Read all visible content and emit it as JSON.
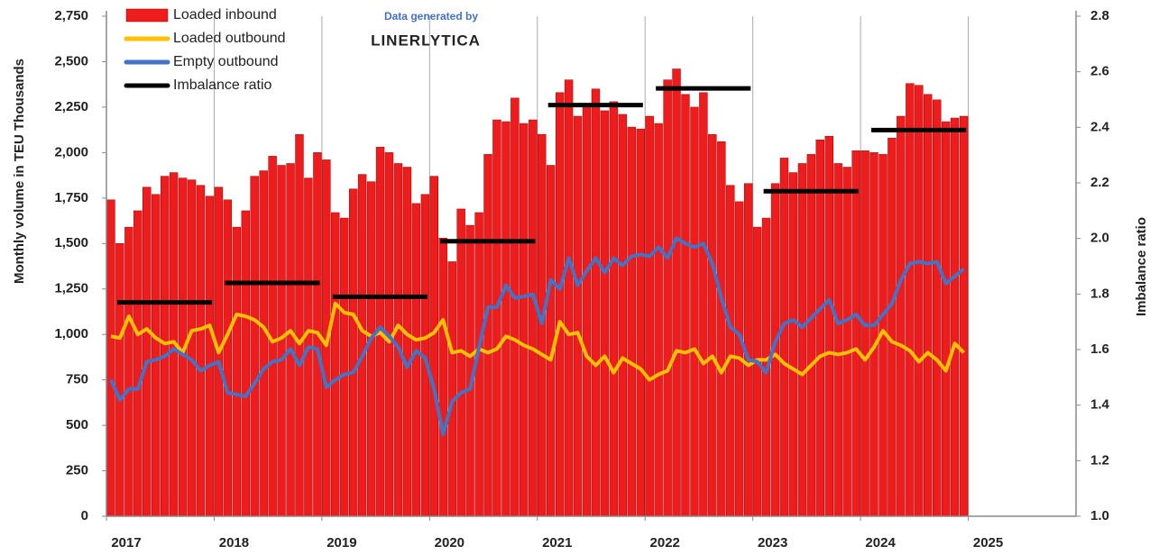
{
  "chart_data": {
    "type": "combo",
    "annotations": [
      "Data generated by",
      "LINERLYTICA"
    ],
    "ylabel": "Monthly volume in TEU Thousands",
    "y2label": "Imbalance ratio",
    "xlim": [
      2017,
      2026
    ],
    "xticks": [
      2017,
      2018,
      2019,
      2020,
      2021,
      2022,
      2023,
      2024,
      2025
    ],
    "ylim": [
      0,
      2750
    ],
    "yticks": [
      0,
      250,
      500,
      750,
      {
        "value": 1000,
        "label": "1,000"
      },
      {
        "value": 1250,
        "label": "1,250"
      },
      {
        "value": 1500,
        "label": "1,500"
      },
      {
        "value": 1750,
        "label": "1,750"
      },
      {
        "value": 2000,
        "label": "2,000"
      },
      {
        "value": 2250,
        "label": "2,250"
      },
      {
        "value": 2500,
        "label": "2,500"
      },
      {
        "value": 2750,
        "label": "2,750"
      }
    ],
    "y2lim": [
      1.0,
      2.8
    ],
    "y2ticks": [
      {
        "value": 1.0,
        "label": "1.0"
      },
      1.2,
      1.4,
      1.6,
      1.8,
      {
        "value": 2.0,
        "label": "2.0"
      },
      2.2,
      2.4,
      2.6,
      2.8
    ],
    "legend": "top-left",
    "x": [
      2017.0,
      2017.083,
      2017.167,
      2017.25,
      2017.333,
      2017.417,
      2017.5,
      2017.583,
      2017.667,
      2017.75,
      2017.833,
      2017.917,
      2018.0,
      2018.083,
      2018.167,
      2018.25,
      2018.333,
      2018.417,
      2018.5,
      2018.583,
      2018.667,
      2018.75,
      2018.833,
      2018.917,
      2019.0,
      2019.083,
      2019.167,
      2019.25,
      2019.333,
      2019.417,
      2019.5,
      2019.583,
      2019.667,
      2019.75,
      2019.833,
      2019.917,
      2020.0,
      2020.083,
      2020.167,
      2020.25,
      2020.333,
      2020.417,
      2020.5,
      2020.583,
      2020.667,
      2020.75,
      2020.833,
      2020.917,
      2021.0,
      2021.083,
      2021.167,
      2021.25,
      2021.333,
      2021.417,
      2021.5,
      2021.583,
      2021.667,
      2021.75,
      2021.833,
      2021.917,
      2022.0,
      2022.083,
      2022.167,
      2022.25,
      2022.333,
      2022.417,
      2022.5,
      2022.583,
      2022.667,
      2022.75,
      2022.833,
      2022.917,
      2023.0,
      2023.083,
      2023.167,
      2023.25,
      2023.333,
      2023.417,
      2023.5,
      2023.583,
      2023.667,
      2023.75,
      2023.833,
      2023.917,
      2024.0,
      2024.083,
      2024.167,
      2024.25,
      2024.333,
      2024.417,
      2024.5,
      2024.583,
      2024.667,
      2024.75,
      2024.833,
      2024.917
    ],
    "series": [
      {
        "name": "Loaded inbound",
        "type": "bar",
        "color": "#ee1c1c",
        "values": [
          1740,
          1500,
          1590,
          1680,
          1810,
          1770,
          1870,
          1890,
          1860,
          1850,
          1820,
          1760,
          1810,
          1740,
          1590,
          1680,
          1870,
          1900,
          1980,
          1930,
          1940,
          2100,
          1860,
          2000,
          1960,
          1670,
          1640,
          1800,
          1880,
          1840,
          2030,
          2000,
          1940,
          1920,
          1720,
          1770,
          1870,
          1530,
          1400,
          1690,
          1600,
          1670,
          1990,
          2180,
          2170,
          2300,
          2160,
          2180,
          2100,
          1930,
          2330,
          2400,
          2200,
          2260,
          2350,
          2230,
          2280,
          2210,
          2140,
          2130,
          2200,
          2160,
          2400,
          2460,
          2320,
          2250,
          2330,
          2100,
          2060,
          1820,
          1730,
          1830,
          1590,
          1640,
          1830,
          1970,
          1890,
          1940,
          1990,
          2070,
          2090,
          1940,
          1920,
          2010,
          2010,
          2000,
          1990,
          2080,
          2200,
          2380,
          2370,
          2320,
          2290,
          2170,
          2190,
          2200
        ]
      },
      {
        "name": "Loaded outbound",
        "type": "line",
        "color": "#ffc000",
        "values": [
          990,
          980,
          1100,
          1000,
          1030,
          980,
          950,
          960,
          900,
          1020,
          1030,
          1050,
          900,
          1000,
          1110,
          1100,
          1080,
          1040,
          960,
          980,
          1020,
          950,
          1020,
          1010,
          940,
          1170,
          1120,
          1110,
          1020,
          990,
          1010,
          960,
          1050,
          1000,
          970,
          980,
          1010,
          1080,
          900,
          910,
          880,
          920,
          900,
          920,
          990,
          970,
          940,
          920,
          890,
          860,
          1070,
          1000,
          1010,
          880,
          830,
          880,
          790,
          870,
          840,
          810,
          750,
          780,
          800,
          910,
          900,
          920,
          840,
          880,
          790,
          880,
          870,
          830,
          860,
          860,
          890,
          840,
          810,
          780,
          830,
          880,
          900,
          890,
          900,
          920,
          860,
          930,
          1020,
          960,
          940,
          910,
          850,
          900,
          860,
          800,
          950,
          900
        ]
      },
      {
        "name": "Empty outbound",
        "type": "line",
        "color": "#4472c4",
        "values": [
          750,
          640,
          700,
          700,
          850,
          860,
          880,
          920,
          890,
          860,
          800,
          830,
          850,
          680,
          670,
          660,
          730,
          810,
          850,
          860,
          920,
          830,
          930,
          920,
          710,
          750,
          780,
          790,
          880,
          980,
          1040,
          990,
          930,
          820,
          910,
          870,
          700,
          450,
          630,
          680,
          700,
          930,
          1150,
          1150,
          1270,
          1200,
          1210,
          1220,
          1060,
          1300,
          1250,
          1420,
          1270,
          1350,
          1420,
          1340,
          1420,
          1380,
          1430,
          1440,
          1430,
          1480,
          1420,
          1530,
          1500,
          1480,
          1500,
          1390,
          1200,
          1040,
          1000,
          860,
          850,
          790,
          960,
          1060,
          1080,
          1040,
          1090,
          1140,
          1190,
          1060,
          1080,
          1110,
          1050,
          1050,
          1110,
          1170,
          1300,
          1390,
          1400,
          1390,
          1400,
          1280,
          1320,
          1360
        ]
      },
      {
        "name": "Imbalance ratio",
        "type": "segment",
        "axis": "y2",
        "color": "#000000",
        "x": [
          2017,
          2018,
          2019,
          2020,
          2021,
          2022,
          2023,
          2024
        ],
        "values": [
          1.77,
          1.84,
          1.79,
          1.99,
          2.48,
          2.54,
          2.17,
          2.39
        ]
      }
    ]
  }
}
